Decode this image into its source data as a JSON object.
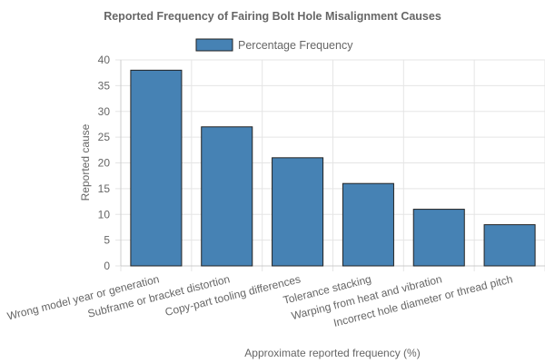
{
  "chart_data": {
    "type": "bar",
    "title": "Reported Frequency of Fairing Bolt Hole Misalignment Causes",
    "xlabel": "Approximate reported frequency (%)",
    "ylabel": "Reported cause",
    "categories": [
      "Wrong model year or generation",
      "Subframe or bracket distortion",
      "Copy-part tooling differences",
      "Tolerance stacking",
      "Warping from heat and vibration",
      "Incorrect hole diameter or thread pitch"
    ],
    "series": [
      {
        "name": "Percentage Frequency",
        "values": [
          38,
          27,
          21,
          16,
          11,
          8
        ],
        "color": "#4682b4"
      }
    ],
    "ylim": [
      0,
      40
    ],
    "yticks": [
      0,
      5,
      10,
      15,
      20,
      25,
      30,
      35,
      40
    ],
    "grid": true,
    "legend": "top-center"
  }
}
